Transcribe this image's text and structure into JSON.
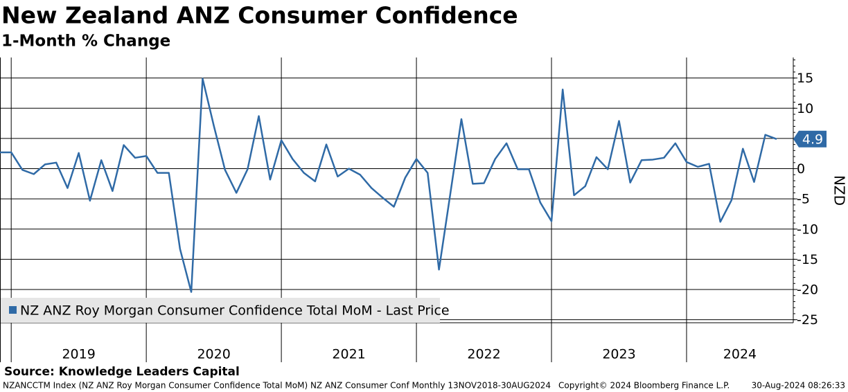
{
  "chart_data": {
    "type": "line",
    "title": "New Zealand ANZ Consumer Confidence",
    "subtitle": "1-Month % Change",
    "y_label": "NZD",
    "source": "Source: Knowledge Leaders Capital",
    "footer_left": "NZANCCTM Index (NZ ANZ Roy Morgan Consumer Confidence Total MoM) NZ ANZ Consumer Conf  Monthly 13NOV2018-30AUG2024",
    "footer_center": "Copyright© 2024 Bloomberg Finance L.P.",
    "footer_right": "30-Aug-2024 08:26:33",
    "x": [
      2018.917,
      2019.0,
      2019.083,
      2019.167,
      2019.25,
      2019.333,
      2019.417,
      2019.5,
      2019.583,
      2019.667,
      2019.75,
      2019.833,
      2019.917,
      2020.0,
      2020.083,
      2020.167,
      2020.25,
      2020.333,
      2020.417,
      2020.5,
      2020.583,
      2020.667,
      2020.75,
      2020.833,
      2020.917,
      2021.0,
      2021.083,
      2021.167,
      2021.25,
      2021.333,
      2021.417,
      2021.5,
      2021.583,
      2021.667,
      2021.75,
      2021.833,
      2021.917,
      2022.0,
      2022.083,
      2022.167,
      2022.25,
      2022.333,
      2022.417,
      2022.5,
      2022.583,
      2022.667,
      2022.75,
      2022.833,
      2022.917,
      2023.0,
      2023.083,
      2023.167,
      2023.25,
      2023.333,
      2023.417,
      2023.5,
      2023.583,
      2023.667,
      2023.75,
      2023.833,
      2023.917,
      2024.0,
      2024.083,
      2024.167,
      2024.25,
      2024.333,
      2024.417,
      2024.5,
      2024.583,
      2024.667
    ],
    "series": [
      {
        "name": "NZ ANZ Roy Morgan Consumer Confidence Total MoM - Last Price",
        "color": "#2f6aa6",
        "values": [
          2.7,
          2.7,
          -0.2,
          -0.9,
          0.7,
          1.0,
          -3.2,
          2.6,
          -5.3,
          1.4,
          -3.7,
          3.9,
          1.8,
          2.1,
          -0.7,
          -0.7,
          -13.3,
          -20.4,
          14.9,
          7.1,
          -0.2,
          -4.0,
          -0.1,
          8.7,
          -1.8,
          4.7,
          1.6,
          -0.7,
          -2.1,
          4.0,
          -1.3,
          0.0,
          -1.0,
          -3.2,
          -4.8,
          -6.3,
          -1.5,
          1.6,
          -0.7,
          -16.7,
          -4.3,
          8.2,
          -2.5,
          -2.4,
          1.6,
          4.2,
          -0.1,
          -0.1,
          -5.6,
          -8.7,
          13.1,
          -4.4,
          -2.9,
          1.9,
          -0.1,
          7.9,
          -2.3,
          1.4,
          1.5,
          1.8,
          4.2,
          1.1,
          0.3,
          0.8,
          -8.8,
          -5.2,
          3.3,
          -2.2,
          5.6,
          4.9
        ]
      }
    ],
    "xlim": [
      2018.917,
      2024.79
    ],
    "xticks": [
      2019,
      2020,
      2021,
      2022,
      2023,
      2024
    ],
    "ylim": [
      -25.5,
      18.4
    ],
    "yticks": [
      15,
      10,
      5,
      0,
      -5,
      -10,
      -15,
      -20,
      -25
    ],
    "grid": true,
    "legend": "lower left"
  }
}
